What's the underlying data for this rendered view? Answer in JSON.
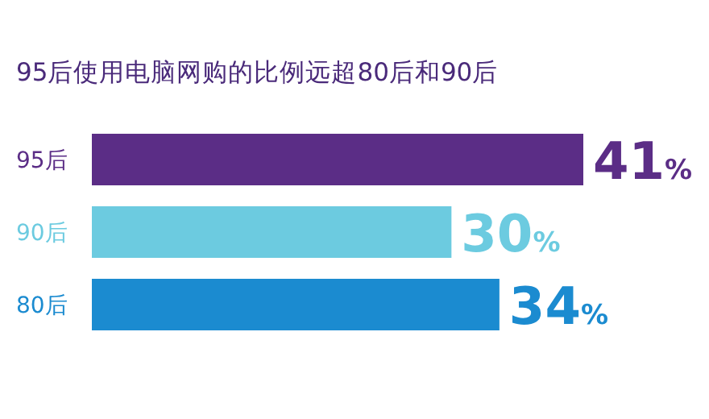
{
  "chart_data": {
    "type": "bar",
    "orientation": "horizontal",
    "title": "95后使用电脑网购的比例远超80后和90后",
    "categories": [
      "95后",
      "90后",
      "80后"
    ],
    "values": [
      41,
      30,
      34
    ],
    "value_labels": [
      "41%",
      "30%",
      "34%"
    ],
    "colors": [
      "#5b2d86",
      "#6ccbe0",
      "#1b8bd0"
    ]
  }
}
